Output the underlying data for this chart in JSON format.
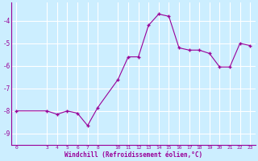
{
  "x": [
    0,
    3,
    4,
    5,
    6,
    7,
    8,
    10,
    11,
    12,
    13,
    14,
    15,
    16,
    17,
    18,
    19,
    20,
    21,
    22,
    23
  ],
  "y": [
    -8.0,
    -8.0,
    -8.15,
    -8.0,
    -8.1,
    -8.65,
    -7.85,
    -6.6,
    -5.6,
    -5.6,
    -4.2,
    -3.7,
    -3.8,
    -5.2,
    -5.3,
    -5.3,
    -5.45,
    -6.05,
    -6.05,
    -5.0,
    -5.1
  ],
  "line_color": "#990099",
  "marker_color": "#990099",
  "bg_color": "#cceeff",
  "grid_color": "#ffffff",
  "xlabel": "Windchill (Refroidissement éolien,°C)",
  "xlabel_color": "#990099",
  "tick_color": "#990099",
  "xlim": [
    -0.5,
    23.5
  ],
  "ylim": [
    -9.5,
    -3.2
  ],
  "yticks": [
    -9,
    -8,
    -7,
    -6,
    -5,
    -4
  ],
  "xticks": [
    0,
    3,
    4,
    5,
    6,
    7,
    8,
    10,
    11,
    12,
    13,
    14,
    15,
    16,
    17,
    18,
    19,
    20,
    21,
    22,
    23
  ]
}
